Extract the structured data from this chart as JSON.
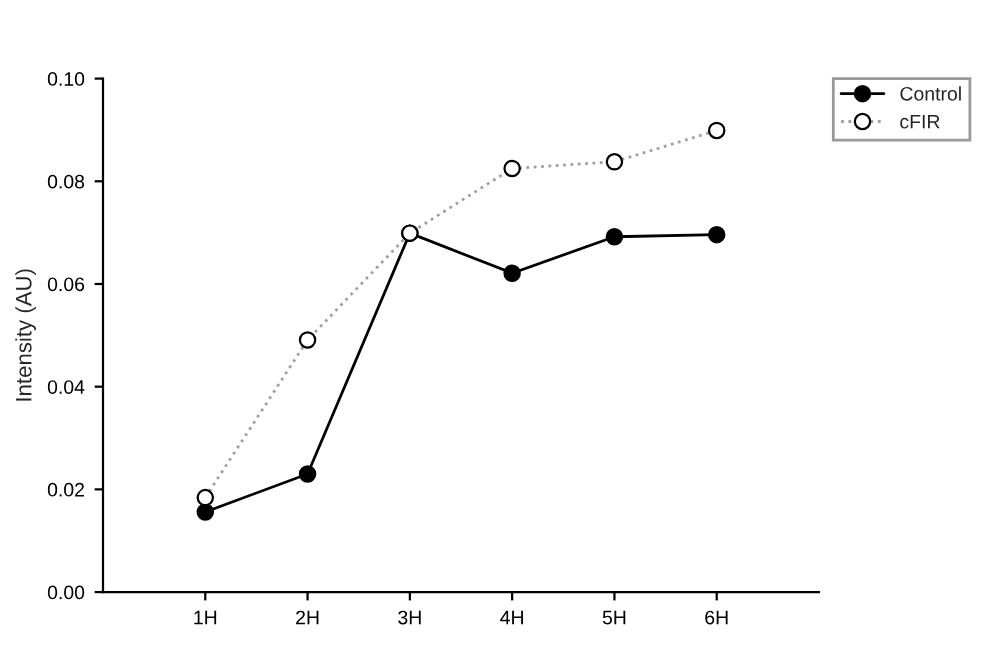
{
  "chart_data": {
    "type": "line",
    "ylabel": "Intensity (AU)",
    "categories": [
      "1H",
      "2H",
      "3H",
      "4H",
      "5H",
      "6H"
    ],
    "series": [
      {
        "name": "Control",
        "color": "#000000",
        "values": [
          0.0156,
          0.023,
          0.0699,
          0.0621,
          0.0692,
          0.0696
        ],
        "marker": "circle",
        "line_style": "solid"
      },
      {
        "name": "cFIR",
        "color": "#a0a0a0",
        "values": [
          0.0184,
          0.0491,
          0.0699,
          0.0825,
          0.0838,
          0.0899
        ],
        "marker": "circle",
        "line_style": "dotted"
      }
    ],
    "ylim": [
      0,
      0.1
    ],
    "yticks": [
      {
        "value": 0,
        "label": "0.00"
      },
      {
        "value": 0.02,
        "label": "0.02"
      },
      {
        "value": 0.04,
        "label": "0.04"
      },
      {
        "value": 0.06,
        "label": "0.06"
      },
      {
        "value": 0.08,
        "label": "0.08"
      },
      {
        "value": 0.1,
        "label": "0.10"
      }
    ],
    "grid": false,
    "legend": "top right"
  }
}
